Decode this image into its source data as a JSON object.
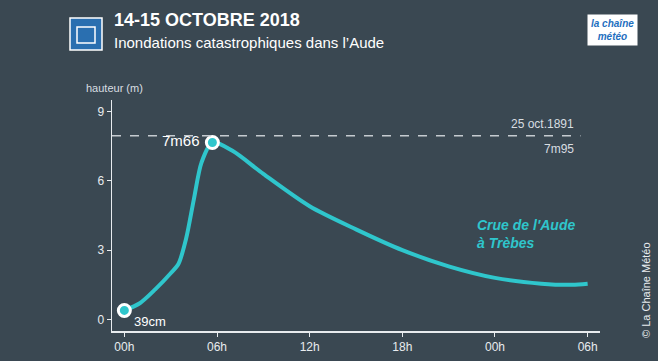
{
  "chart_data": {
    "type": "line",
    "title": "14-15 OCTOBRE 2018",
    "subtitle": "Inondations catastrophiques dans l’Aude",
    "y_label": "hauteur (m)",
    "logo": "la chaîne météo",
    "credit": "© La Chaîne Météo",
    "x": [
      0,
      1,
      2,
      3,
      3.5,
      4,
      4.5,
      5,
      5.7,
      7,
      9,
      12,
      15,
      18,
      21,
      24,
      27,
      29,
      30
    ],
    "series": [
      {
        "name": "Crue de l'Aude à Trèbes",
        "color": "#2fc6cc",
        "values": [
          0.39,
          0.7,
          1.3,
          2.0,
          2.4,
          3.5,
          5.2,
          6.8,
          7.66,
          7.3,
          6.3,
          4.9,
          3.9,
          3.0,
          2.3,
          1.8,
          1.55,
          1.5,
          1.55
        ],
        "value_labels": [
          "39cm",
          null,
          null,
          null,
          null,
          null,
          null,
          null,
          "7m66",
          null,
          null,
          null,
          null,
          null,
          null,
          null,
          null,
          null,
          null
        ]
      }
    ],
    "reference": {
      "value": 7.95,
      "label": "25 oct.1891",
      "value_label": "7m95"
    },
    "xlim": [
      -0.8,
      30.8
    ],
    "xticks": [
      {
        "value": 0,
        "label": "00h"
      },
      {
        "value": 6,
        "label": "06h"
      },
      {
        "value": 12,
        "label": "12h"
      },
      {
        "value": 18,
        "label": "18h"
      },
      {
        "value": 24,
        "label": "00h"
      },
      {
        "value": 30,
        "label": "06h"
      }
    ],
    "ylim": [
      -0.5,
      9.5
    ],
    "yticks": [
      0,
      3,
      6,
      9
    ],
    "grid": false
  }
}
